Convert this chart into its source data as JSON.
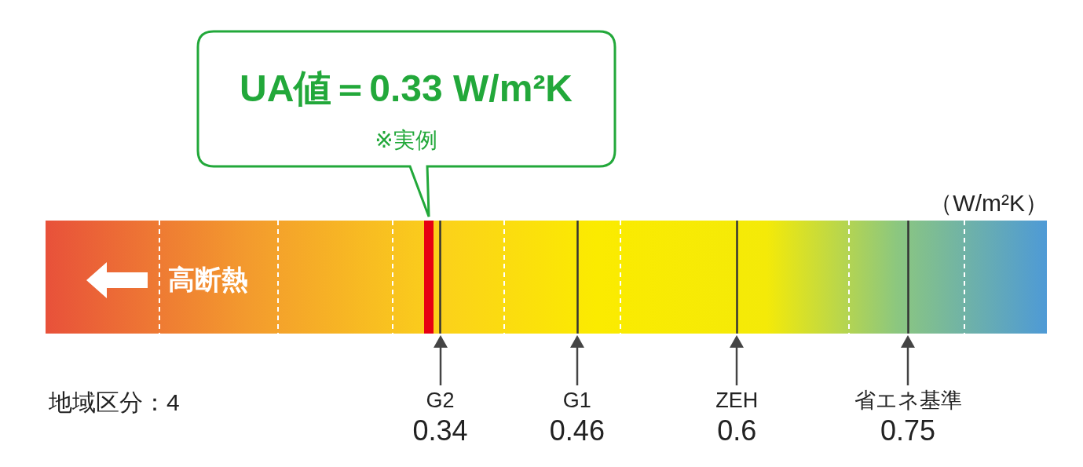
{
  "chart_data": {
    "type": "other",
    "subtitle": "※実例",
    "xlabel": "（W/m²K）",
    "categories": [
      null,
      "G2",
      "G1",
      "ZEH",
      "省エネ基準"
    ],
    "values": [
      0.33,
      0.34,
      0.46,
      0.6,
      0.75
    ],
    "colors": [
      "#e60012",
      "#333333",
      "#333333",
      "#333333",
      "#333333"
    ],
    "value_labels": [
      "UA値＝0.33 W/m²K",
      "0.34",
      "0.46",
      "0.6",
      "0.75"
    ],
    "annotations": [
      "高断熱",
      "地域区分：4"
    ]
  }
}
